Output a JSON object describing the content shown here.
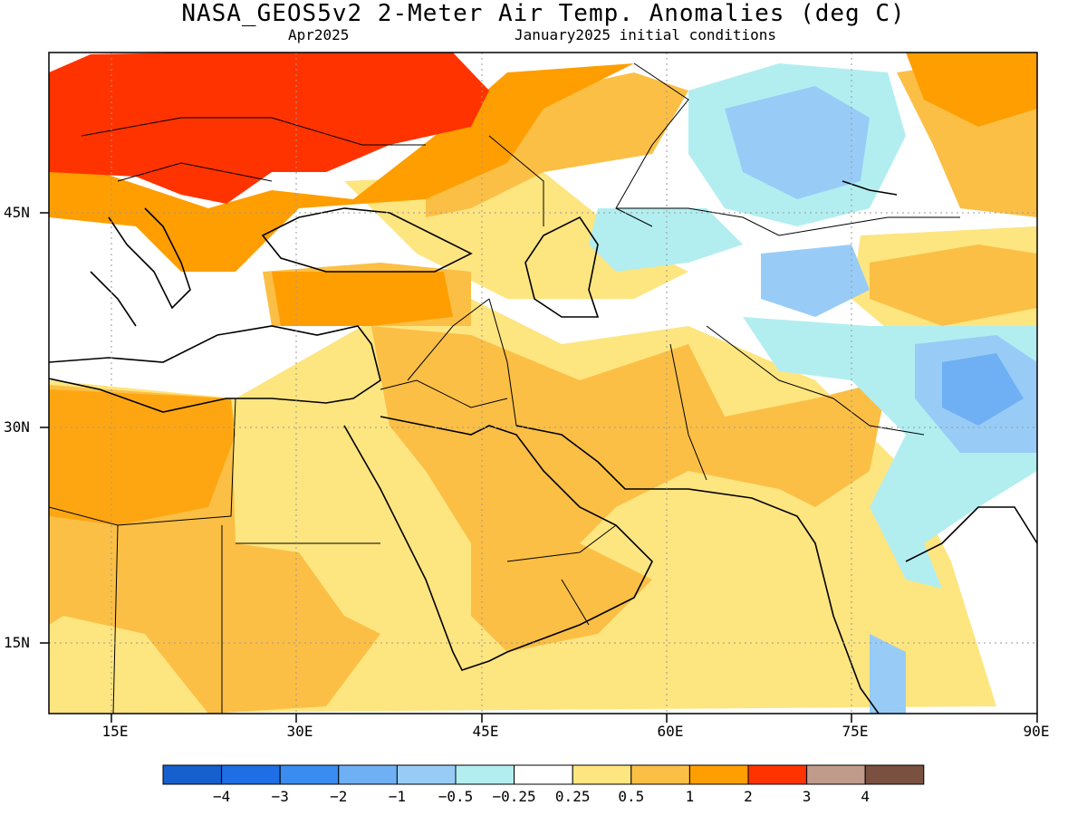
{
  "title": "NASA_GEOS5v2 2-Meter Air Temp. Anomalies (deg C)",
  "subtitle_left": "Apr2025",
  "subtitle_right": "January2025 initial conditions",
  "lat_labels": [
    "45N",
    "30N",
    "15N"
  ],
  "lon_labels": [
    "15E",
    "30E",
    "45E",
    "60E",
    "75E",
    "90E"
  ],
  "colorbar": {
    "colors": [
      "#1560cc",
      "#1f6ee6",
      "#3a8cf0",
      "#6fb0f5",
      "#98ccf7",
      "#b2eef0",
      "#ffffff",
      "#fde580",
      "#fbbf45",
      "#ff9e00",
      "#ff3300",
      "#c09a8a",
      "#7a5040"
    ],
    "labels": [
      "−4",
      "−3",
      "−2",
      "−1",
      "−0.5",
      "−0.25",
      "0.25",
      "0.5",
      "1",
      "2",
      "3",
      "4"
    ]
  }
}
